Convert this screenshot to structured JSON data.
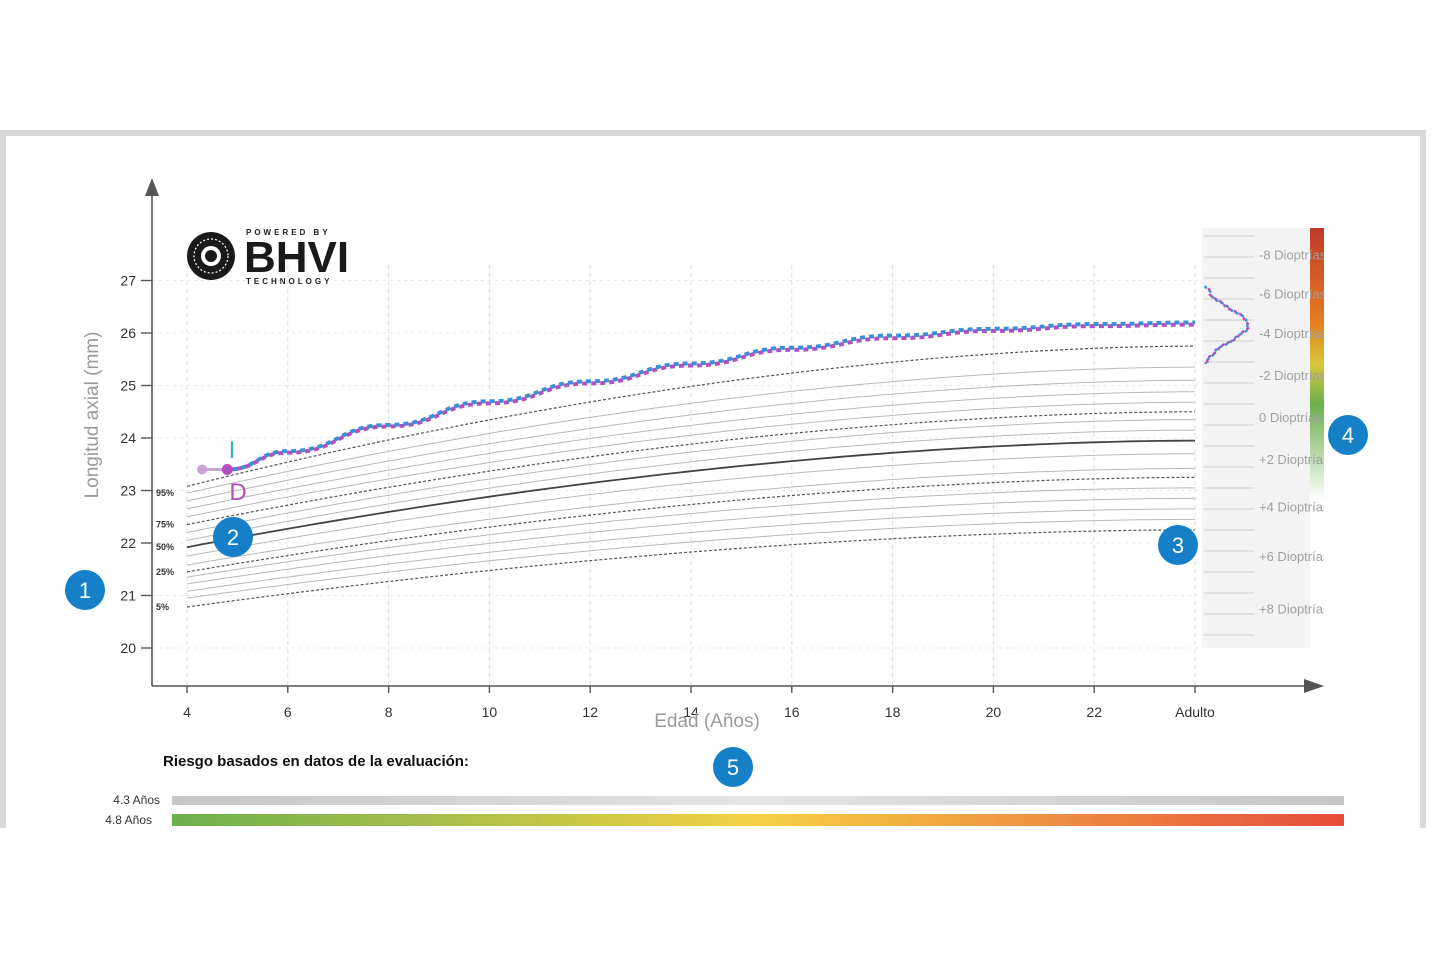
{
  "logo": {
    "top_text": "POWERED BY",
    "brand": "BHVI",
    "bottom_text": "TECHNOLOGY"
  },
  "chart_data": {
    "type": "line",
    "title": "",
    "xlabel": "Edad (Años)",
    "ylabel": "Longitud axial (mm)",
    "x_ticks": [
      {
        "v": 4,
        "label": "4"
      },
      {
        "v": 6,
        "label": "6"
      },
      {
        "v": 8,
        "label": "8"
      },
      {
        "v": 10,
        "label": "10"
      },
      {
        "v": 12,
        "label": "12"
      },
      {
        "v": 14,
        "label": "14"
      },
      {
        "v": 16,
        "label": "16"
      },
      {
        "v": 18,
        "label": "18"
      },
      {
        "v": 20,
        "label": "20"
      },
      {
        "v": 22,
        "label": "22"
      },
      {
        "v": 24,
        "label": "Adulto"
      }
    ],
    "y_ticks": [
      20,
      21,
      22,
      23,
      24,
      25,
      26,
      27
    ],
    "xlim": [
      4,
      24
    ],
    "ylim": [
      20,
      27
    ],
    "percentile_labels": [
      {
        "label": "95%",
        "y": 22.95
      },
      {
        "label": "75%",
        "y": 22.35
      },
      {
        "label": "50%",
        "y": 21.92
      },
      {
        "label": "25%",
        "y": 21.45
      },
      {
        "label": "5%",
        "y": 20.78
      }
    ],
    "percentile_curves": [
      {
        "start": 20.78,
        "end": 22.25,
        "style": "dashed"
      },
      {
        "start": 20.95,
        "end": 22.45,
        "style": "thin"
      },
      {
        "start": 21.08,
        "end": 22.65,
        "style": "thin"
      },
      {
        "start": 21.22,
        "end": 22.85,
        "style": "thin"
      },
      {
        "start": 21.35,
        "end": 23.05,
        "style": "thin"
      },
      {
        "start": 21.45,
        "end": 23.25,
        "style": "dashed"
      },
      {
        "start": 21.58,
        "end": 23.42,
        "style": "thin"
      },
      {
        "start": 21.75,
        "end": 23.7,
        "style": "thin"
      },
      {
        "start": 21.92,
        "end": 23.95,
        "style": "solid"
      },
      {
        "start": 22.05,
        "end": 24.15,
        "style": "thin"
      },
      {
        "start": 22.2,
        "end": 24.35,
        "style": "thin"
      },
      {
        "start": 22.35,
        "end": 24.5,
        "style": "dashed"
      },
      {
        "start": 22.5,
        "end": 24.68,
        "style": "thin"
      },
      {
        "start": 22.65,
        "end": 24.88,
        "style": "thin"
      },
      {
        "start": 22.8,
        "end": 25.1,
        "style": "thin"
      },
      {
        "start": 22.95,
        "end": 25.35,
        "style": "thin"
      },
      {
        "start": 23.08,
        "end": 25.75,
        "style": "dashed"
      }
    ],
    "series": [
      {
        "name": "I",
        "color": "#3b8fd6",
        "points": [
          [
            4.3,
            23.4
          ],
          [
            4.8,
            23.4
          ]
        ],
        "projection": [
          [
            4.8,
            23.4
          ],
          [
            6,
            23.75
          ],
          [
            8,
            24.25
          ],
          [
            10,
            24.7
          ],
          [
            12,
            25.08
          ],
          [
            14,
            25.42
          ],
          [
            16,
            25.72
          ],
          [
            18,
            25.95
          ],
          [
            20,
            26.08
          ],
          [
            22,
            26.17
          ],
          [
            24,
            26.2
          ]
        ]
      },
      {
        "name": "D",
        "color": "#b44fc0",
        "points": [
          [
            4.3,
            23.4
          ],
          [
            4.8,
            23.4
          ]
        ],
        "projection": [
          [
            4.8,
            23.4
          ],
          [
            6,
            23.72
          ],
          [
            8,
            24.22
          ],
          [
            10,
            24.66
          ],
          [
            12,
            25.04
          ],
          [
            14,
            25.38
          ],
          [
            16,
            25.68
          ],
          [
            18,
            25.9
          ],
          [
            20,
            26.04
          ],
          [
            22,
            26.13
          ],
          [
            24,
            26.16
          ]
        ]
      }
    ],
    "diopter_scale": [
      {
        "label": "-8 Dioptrías",
        "y": 27.5
      },
      {
        "label": "-6 Dioptrías",
        "y": 26.75
      },
      {
        "label": "-4 Dioptrías",
        "y": 26.0
      },
      {
        "label": "-2 Dioptrías",
        "y": 25.2
      },
      {
        "label": "0 Dioptrías",
        "y": 24.4
      },
      {
        "label": "+2 Dioptrías",
        "y": 23.6
      },
      {
        "label": "+4 Dioptrías",
        "y": 22.7
      },
      {
        "label": "+6 Dioptrías",
        "y": 21.75
      },
      {
        "label": "+8 Dioptrías",
        "y": 20.75
      }
    ],
    "risk": {
      "title": "Riesgo basados en datos de la evaluación:",
      "rows": [
        {
          "label": "4.3 Años",
          "type": "neutral"
        },
        {
          "label": "4.8 Años",
          "type": "gradient"
        }
      ]
    },
    "badges": [
      "1",
      "2",
      "3",
      "4",
      "5"
    ],
    "colors": {
      "grid": "#dcdcdc",
      "axis": "#555555",
      "curve": "#b8b8b8",
      "median": "#444444",
      "right_eye": "#b44fc0",
      "left_eye": "#3b8fd6",
      "eye_label_I": "#30b0c8",
      "eye_label_D": "#b44fc0",
      "badge": "#1580c8",
      "risk_low": "#6ab04c",
      "risk_mid": "#f5d142",
      "risk_high": "#e74c3c"
    }
  }
}
